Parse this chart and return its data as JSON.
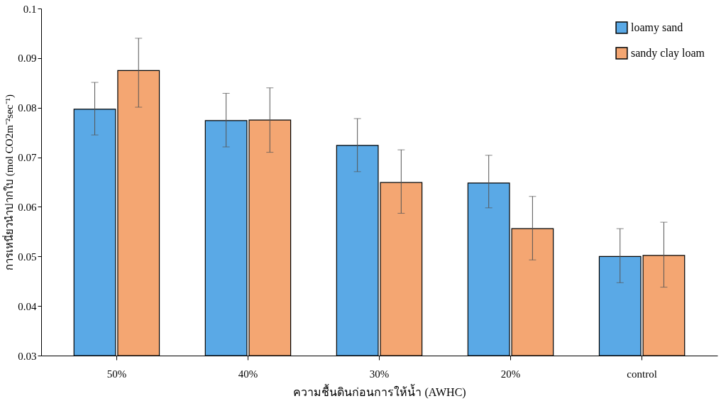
{
  "chart_data": {
    "type": "bar",
    "xlabel": "ความชื้นดินก่อนการให้น้ำ (AWHC)",
    "ylabel": "การเหนี่ยวนำปากใบ (mol CO2m⁻²sec⁻¹)",
    "categories": [
      "50%",
      "40%",
      "30%",
      "20%",
      "control"
    ],
    "series": [
      {
        "name": "loamy sand",
        "color": "#5aa9e6",
        "values": [
          0.0797,
          0.0774,
          0.0724,
          0.0648,
          0.05
        ],
        "errors": [
          [
            0.0745,
            0.0851
          ],
          [
            0.0721,
            0.0829
          ],
          [
            0.0671,
            0.0778
          ],
          [
            0.0598,
            0.0704
          ],
          [
            0.0447,
            0.0556
          ]
        ]
      },
      {
        "name": "sandy clay loam",
        "color": "#f4a672",
        "values": [
          0.0875,
          0.0775,
          0.0649,
          0.0556,
          0.0502
        ],
        "errors": [
          [
            0.0801,
            0.094
          ],
          [
            0.071,
            0.084
          ],
          [
            0.0587,
            0.0715
          ],
          [
            0.0493,
            0.0621
          ],
          [
            0.0438,
            0.0569
          ]
        ]
      }
    ],
    "ylim": [
      0.03,
      0.1
    ],
    "yticks": [
      0.03,
      0.04,
      0.05,
      0.06,
      0.07,
      0.08,
      0.09,
      0.1
    ],
    "grid": false,
    "legend": "top right"
  }
}
